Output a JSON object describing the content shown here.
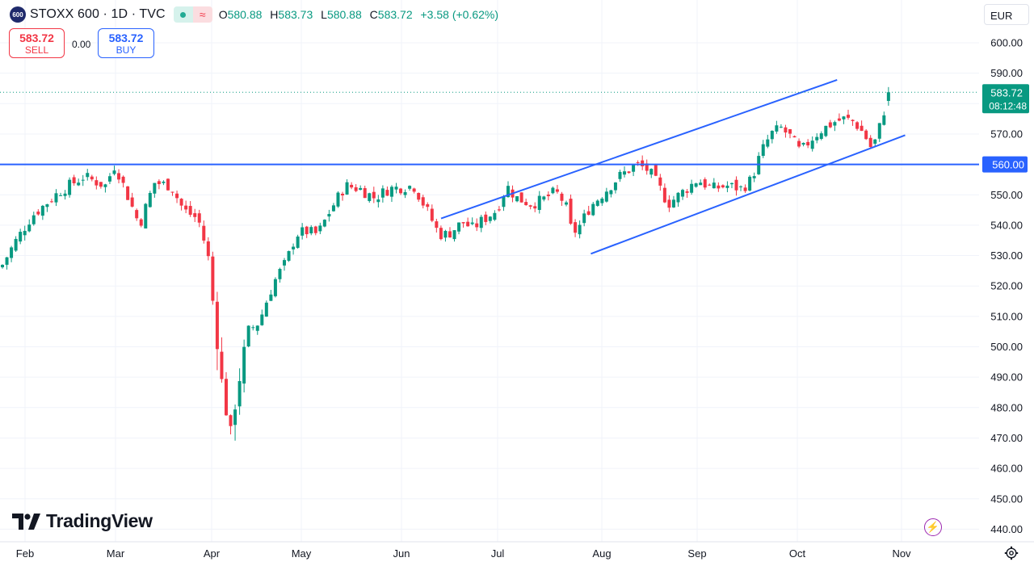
{
  "header": {
    "symbol_badge": "600",
    "title": "STOXX 600 · 1D · TVC",
    "open_label": "O",
    "open": "580.88",
    "high_label": "H",
    "high": "583.73",
    "low_label": "L",
    "low": "580.88",
    "close_label": "C",
    "close": "583.72",
    "change": "+3.58 (+0.62%)",
    "wave_icon": "≈"
  },
  "trade": {
    "sell_price": "583.72",
    "sell_label": "SELL",
    "spread": "0.00",
    "buy_price": "583.72",
    "buy_label": "BUY"
  },
  "currency": "EUR",
  "branding": {
    "name": "TradingView"
  },
  "colors": {
    "up": "#089981",
    "down": "#f23645",
    "line": "#2962ff",
    "accent": "#9c27b0"
  },
  "chart_data": {
    "type": "candlestick",
    "y_axis": {
      "ticks": [
        "600.00",
        "590.00",
        "580.00",
        "570.00",
        "560.00",
        "550.00",
        "540.00",
        "530.00",
        "520.00",
        "510.00",
        "500.00",
        "490.00",
        "480.00",
        "470.00",
        "460.00",
        "450.00",
        "440.00"
      ],
      "ylim": [
        436,
        604
      ]
    },
    "x_axis": {
      "ticks": [
        "Feb",
        "Mar",
        "Apr",
        "May",
        "Jun",
        "Jul",
        "Aug",
        "Sep",
        "Oct",
        "Nov"
      ]
    },
    "last_price_label": {
      "price": "583.72",
      "countdown": "08:12:48"
    },
    "horizontal_line": {
      "value": 560,
      "label": "560.00"
    },
    "trendlines": [
      {
        "from": [
          0.4505,
          542.2
        ],
        "to": [
          0.855,
          587.8
        ]
      },
      {
        "from": [
          0.6035,
          530.6
        ],
        "to": [
          0.9245,
          569.6
        ]
      }
    ],
    "anchors": [
      [
        0,
        527
      ],
      [
        0.012,
        534
      ],
      [
        0.03,
        543
      ],
      [
        0.058,
        551
      ],
      [
        0.083,
        556
      ],
      [
        0.105,
        553
      ],
      [
        0.115,
        560
      ],
      [
        0.125,
        552
      ],
      [
        0.14,
        540
      ],
      [
        0.155,
        554
      ],
      [
        0.172,
        553
      ],
      [
        0.185,
        545
      ],
      [
        0.2,
        542
      ],
      [
        0.21,
        530
      ],
      [
        0.222,
        493
      ],
      [
        0.228,
        480
      ],
      [
        0.232,
        470
      ],
      [
        0.24,
        485
      ],
      [
        0.25,
        505
      ],
      [
        0.262,
        508
      ],
      [
        0.272,
        517
      ],
      [
        0.28,
        523
      ],
      [
        0.29,
        528
      ],
      [
        0.3,
        537
      ],
      [
        0.31,
        538
      ],
      [
        0.322,
        537
      ],
      [
        0.335,
        545
      ],
      [
        0.35,
        553
      ],
      [
        0.365,
        552
      ],
      [
        0.38,
        549
      ],
      [
        0.395,
        552
      ],
      [
        0.42,
        553
      ],
      [
        0.435,
        544
      ],
      [
        0.446,
        537
      ],
      [
        0.455,
        537
      ],
      [
        0.47,
        541
      ],
      [
        0.48,
        539
      ],
      [
        0.492,
        542
      ],
      [
        0.505,
        545
      ],
      [
        0.515,
        553
      ],
      [
        0.525,
        549
      ],
      [
        0.54,
        547
      ],
      [
        0.55,
        548
      ],
      [
        0.565,
        551
      ],
      [
        0.575,
        547
      ],
      [
        0.582,
        537
      ],
      [
        0.59,
        540
      ],
      [
        0.6,
        546
      ],
      [
        0.615,
        551
      ],
      [
        0.63,
        556
      ],
      [
        0.648,
        560
      ],
      [
        0.66,
        558
      ],
      [
        0.67,
        553
      ],
      [
        0.68,
        547
      ],
      [
        0.695,
        551
      ],
      [
        0.71,
        555
      ],
      [
        0.725,
        552
      ],
      [
        0.74,
        553
      ],
      [
        0.755,
        552
      ],
      [
        0.765,
        555
      ],
      [
        0.775,
        564
      ],
      [
        0.785,
        570
      ],
      [
        0.795,
        572
      ],
      [
        0.805,
        569
      ],
      [
        0.815,
        564
      ],
      [
        0.825,
        568
      ],
      [
        0.835,
        571
      ],
      [
        0.85,
        574
      ],
      [
        0.86,
        575
      ],
      [
        0.87,
        574
      ],
      [
        0.88,
        570
      ],
      [
        0.888,
        565
      ],
      [
        0.893,
        569
      ],
      [
        0.9,
        577
      ],
      [
        0.905,
        583.72
      ]
    ],
    "seed": 7
  }
}
